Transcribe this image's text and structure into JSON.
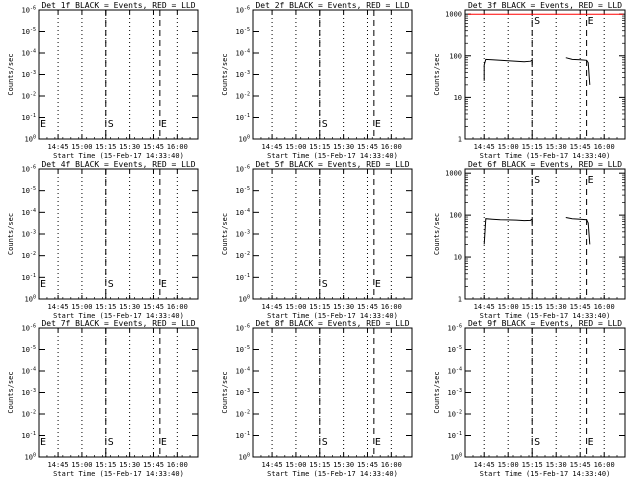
{
  "figure": {
    "xlabel": "Start Time (15-Feb-17 14:33:40)",
    "ylabel": "Counts/sec",
    "x_tick_labels": [
      "14:45",
      "15:00",
      "15:15",
      "15:30",
      "15:45",
      "16:00"
    ],
    "low_y_tick_labels": [
      "10^0",
      "10^-1",
      "10^-2",
      "10^-3",
      "10^-4",
      "10^-5",
      "10^-6"
    ],
    "high_y_tick_labels": [
      "1",
      "10",
      "100",
      "1000"
    ]
  },
  "chart_data": [
    {
      "type": "line",
      "title": "Det 1f BLACK = Events, RED = LLD",
      "xlabel": "Start Time (15-Feb-17 14:33:40)",
      "ylabel": "Counts/sec",
      "scale": "low",
      "S": "S",
      "E": "E",
      "s_time": "15:15",
      "e_time": "15:49",
      "series": []
    },
    {
      "type": "line",
      "title": "Det 2f BLACK = Events, RED = LLD",
      "xlabel": "Start Time (15-Feb-17 14:33:40)",
      "ylabel": "Counts/sec",
      "scale": "low",
      "S": "S",
      "E": "E",
      "s_time": "15:15",
      "e_time": "15:49",
      "series": []
    },
    {
      "type": "line",
      "title": "Det 3f BLACK = Events, RED = LLD",
      "xlabel": "Start Time (15-Feb-17 14:33:40)",
      "ylabel": "Counts/sec",
      "scale": "high",
      "S": "S",
      "E": "E",
      "s_time": "15:15",
      "e_time": "15:49",
      "series": [
        {
          "color": "#000000",
          "segments": [
            [
              [
                "14:45",
                25
              ],
              [
                "14:45",
                60
              ],
              [
                "14:46",
                82
              ],
              [
                "14:50",
                80
              ],
              [
                "14:55",
                78
              ],
              [
                "15:00",
                76
              ],
              [
                "15:05",
                74
              ],
              [
                "15:10",
                72
              ],
              [
                "15:14",
                74
              ],
              [
                "15:15",
                80
              ],
              [
                "15:15",
                60
              ]
            ],
            [
              [
                "15:36",
                90
              ],
              [
                "15:40",
                82
              ],
              [
                "15:45",
                80
              ],
              [
                "15:49",
                78
              ],
              [
                "15:50",
                68
              ],
              [
                "15:51",
                20
              ]
            ]
          ]
        },
        {
          "color": "#ff0000",
          "segments": [
            [
              [
                "14:35",
                1000
              ],
              [
                "16:12",
                1000
              ]
            ]
          ]
        }
      ]
    },
    {
      "type": "line",
      "title": "Det 4f BLACK = Events, RED = LLD",
      "xlabel": "Start Time (15-Feb-17 14:33:40)",
      "ylabel": "Counts/sec",
      "scale": "low",
      "S": "S",
      "E": "E",
      "s_time": "15:15",
      "e_time": "15:49",
      "series": []
    },
    {
      "type": "line",
      "title": "Det 5f BLACK = Events, RED = LLD",
      "xlabel": "Start Time (15-Feb-17 14:33:40)",
      "ylabel": "Counts/sec",
      "scale": "low",
      "S": "S",
      "E": "E",
      "s_time": "15:15",
      "e_time": "15:49",
      "series": []
    },
    {
      "type": "line",
      "title": "Det 6f BLACK = Events, RED = LLD",
      "xlabel": "Start Time (15-Feb-17 14:33:40)",
      "ylabel": "Counts/sec",
      "scale": "high",
      "S": "S",
      "E": "E",
      "s_time": "15:15",
      "e_time": "15:49",
      "series": [
        {
          "color": "#000000",
          "segments": [
            [
              [
                "14:45",
                20
              ],
              [
                "14:46",
                82
              ],
              [
                "14:50",
                80
              ],
              [
                "14:55",
                78
              ],
              [
                "15:00",
                77
              ],
              [
                "15:05",
                76
              ],
              [
                "15:10",
                74
              ],
              [
                "15:14",
                75
              ],
              [
                "15:15",
                82
              ],
              [
                "15:15",
                60
              ]
            ],
            [
              [
                "15:36",
                88
              ],
              [
                "15:40",
                82
              ],
              [
                "15:45",
                80
              ],
              [
                "15:49",
                78
              ],
              [
                "15:50",
                65
              ],
              [
                "15:51",
                20
              ]
            ]
          ]
        }
      ]
    },
    {
      "type": "line",
      "title": "Det 7f BLACK = Events, RED = LLD",
      "xlabel": "Start Time (15-Feb-17 14:33:40)",
      "ylabel": "Counts/sec",
      "scale": "low",
      "S": "S",
      "E": "E",
      "s_time": "15:15",
      "e_time": "15:49",
      "series": []
    },
    {
      "type": "line",
      "title": "Det 8f BLACK = Events, RED = LLD",
      "xlabel": "Start Time (15-Feb-17 14:33:40)",
      "ylabel": "Counts/sec",
      "scale": "low",
      "S": "S",
      "E": "E",
      "s_time": "15:15",
      "e_time": "15:49",
      "series": []
    },
    {
      "type": "line",
      "title": "Det 9f BLACK = Events, RED = LLD",
      "xlabel": "Start Time (15-Feb-17 14:33:40)",
      "ylabel": "Counts/sec",
      "scale": "low",
      "S": "S",
      "E": "E",
      "s_time": "15:15",
      "e_time": "15:49",
      "series": []
    }
  ]
}
